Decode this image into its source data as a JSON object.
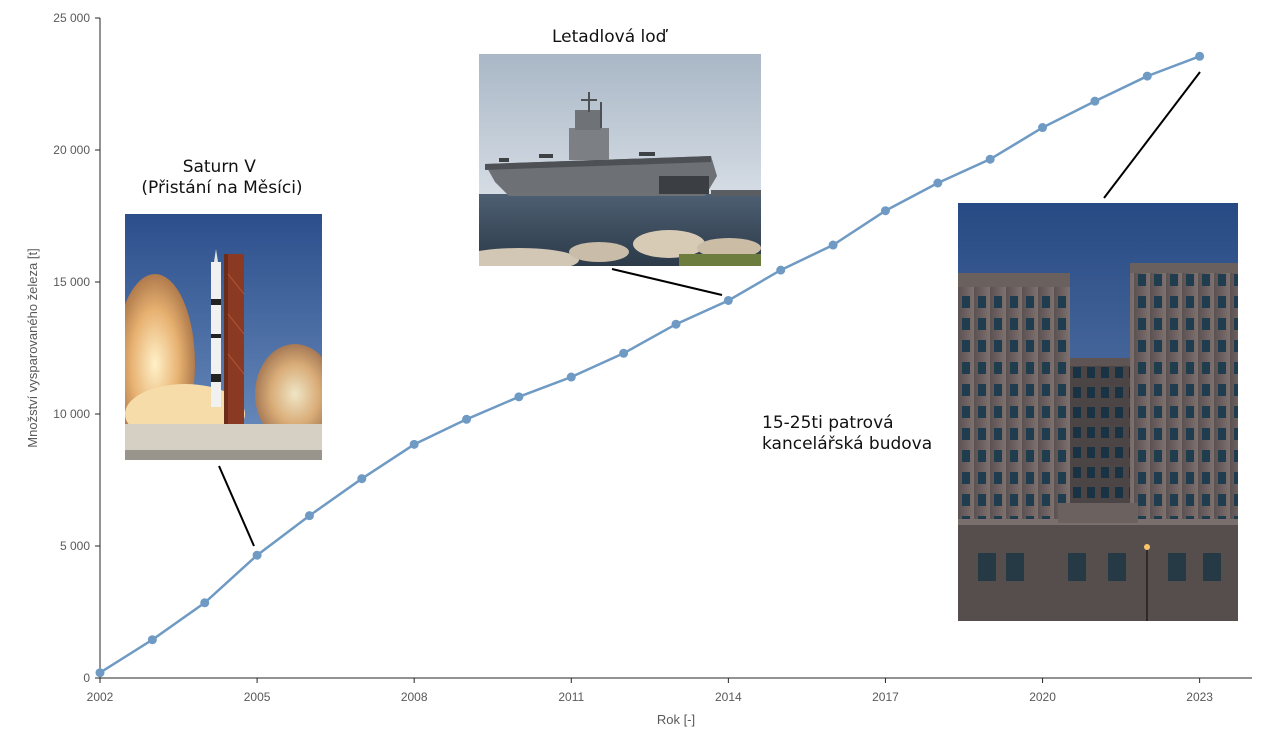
{
  "chart_data": {
    "type": "line",
    "title": "",
    "xlabel": "Rok [-]",
    "ylabel": "Množství vysparovaného železa [t]",
    "xlim": [
      2002,
      2024
    ],
    "ylim": [
      0,
      25000
    ],
    "x_ticks": [
      "2002",
      "2005",
      "2008",
      "2011",
      "2014",
      "2017",
      "2020",
      "2023"
    ],
    "y_ticks": [
      "0",
      "5 000",
      "10 000",
      "15 000",
      "20 000",
      "25 000"
    ],
    "grid": false,
    "series": [
      {
        "color": "#6f9ac4",
        "x": [
          2002,
          2003,
          2004,
          2005,
          2006,
          2007,
          2008,
          2009,
          2010,
          2011,
          2012,
          2013,
          2014,
          2015,
          2016,
          2017,
          2018,
          2019,
          2020,
          2021,
          2022,
          2023
        ],
        "y": [
          200,
          1450,
          2850,
          4650,
          6150,
          7550,
          8850,
          9800,
          10650,
          11400,
          12300,
          13400,
          14300,
          15450,
          16400,
          17700,
          18750,
          19650,
          20850,
          21850,
          22800,
          23550
        ]
      }
    ],
    "annotations": [
      {
        "label": "Saturn V\n (Přistání na Měsíci)",
        "image": "saturn-v-launch-photo",
        "points_to_x": 2005
      },
      {
        "label": "Letadlová loď",
        "image": "aircraft-carrier-photo",
        "points_to_x": 2014
      },
      {
        "label": "15-25ti patrová\nkancelářská budova",
        "image": "office-building-photo",
        "points_to_x": 2023
      }
    ]
  }
}
